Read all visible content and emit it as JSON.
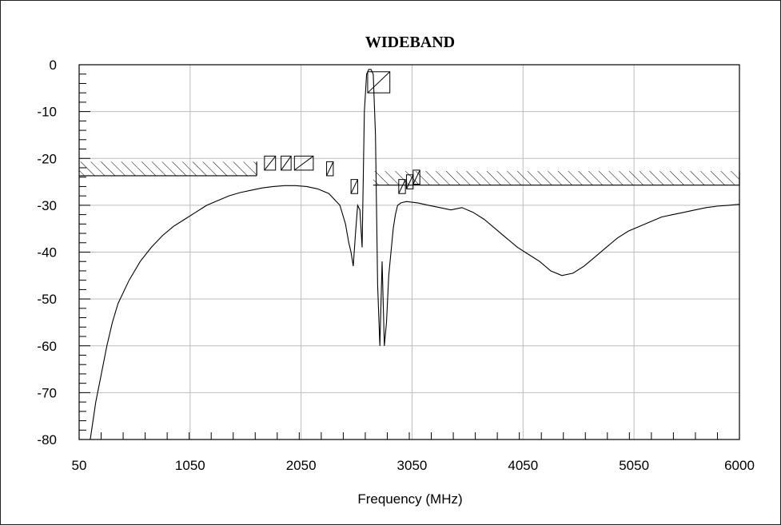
{
  "chart_data": {
    "type": "line",
    "title": "WIDEBAND",
    "xlabel": "Frequency (MHz)",
    "ylabel": "",
    "xlim": [
      50,
      6000
    ],
    "ylim": [
      -80,
      0
    ],
    "x_ticks": [
      50,
      1050,
      2050,
      3050,
      4050,
      5050,
      6000
    ],
    "y_ticks": [
      0,
      -10,
      -20,
      -30,
      -40,
      -50,
      -60,
      -70,
      -80
    ],
    "grid": true,
    "series": [
      {
        "x": [
          150,
          200,
          250,
          300,
          350,
          400,
          500,
          600,
          700,
          800,
          900,
          1000,
          1100,
          1200,
          1300,
          1400,
          1500,
          1600,
          1700,
          1800,
          1900,
          2000,
          2100,
          2200,
          2300,
          2400,
          2450,
          2480,
          2500,
          2520,
          2540,
          2560,
          2580,
          2600,
          2620,
          2640,
          2660,
          2680,
          2700,
          2720,
          2740,
          2760,
          2780,
          2800,
          2820,
          2840,
          2860,
          2880,
          2900,
          2920,
          2950,
          3000,
          3100,
          3200,
          3300,
          3400,
          3500,
          3600,
          3700,
          3800,
          3900,
          4000,
          4100,
          4200,
          4300,
          4400,
          4500,
          4600,
          4700,
          4800,
          4900,
          5000,
          5100,
          5200,
          5300,
          5400,
          5500,
          5600,
          5700,
          5800,
          5900,
          6000
        ],
        "values": [
          -80,
          -72,
          -66,
          -60,
          -55,
          -51,
          -46,
          -42,
          -39,
          -36.5,
          -34.5,
          -33,
          -31.5,
          -30,
          -29,
          -28,
          -27.3,
          -26.8,
          -26.3,
          -26,
          -25.8,
          -25.8,
          -26,
          -26.5,
          -27.5,
          -30,
          -34,
          -38,
          -40,
          -43,
          -36,
          -30,
          -31,
          -39,
          -10,
          -2,
          -1,
          -1,
          -2,
          -15,
          -47,
          -60,
          -42,
          -60,
          -55,
          -45,
          -40,
          -35,
          -32,
          -30,
          -29.5,
          -29.2,
          -29.5,
          -30,
          -30.5,
          -31,
          -30.5,
          -31.5,
          -33,
          -35,
          -37,
          -39,
          -40.5,
          -42,
          -44,
          -45,
          -44.5,
          -43,
          -41,
          -39,
          -37,
          -35.5,
          -34.5,
          -33.5,
          -32.5,
          -32,
          -31.5,
          -31,
          -30.5,
          -30.2,
          -30,
          -29.8
        ]
      }
    ],
    "annotations": {
      "spec_bands": [
        {
          "x": [
            50,
            1650
          ],
          "lower": -23.7,
          "upper": -20.7
        },
        {
          "x": [
            2700,
            6000
          ],
          "lower": -25.7,
          "upper": -22.7
        }
      ],
      "spec_markers": [
        {
          "x": [
            1720,
            1820
          ],
          "lower": -22.5,
          "upper": -19.5
        },
        {
          "x": [
            1870,
            1960
          ],
          "lower": -22.5,
          "upper": -19.5
        },
        {
          "x": [
            1990,
            2160
          ],
          "lower": -22.5,
          "upper": -19.5
        },
        {
          "x": [
            2280,
            2340
          ],
          "lower": -23.7,
          "upper": -20.7
        },
        {
          "x": [
            2500,
            2560
          ],
          "lower": -27.5,
          "upper": -24.5
        },
        {
          "x": [
            2650,
            2850
          ],
          "lower": -6,
          "upper": -1.5
        },
        {
          "x": [
            2930,
            2990
          ],
          "lower": -27.5,
          "upper": -24.5
        },
        {
          "x": [
            3000,
            3060
          ],
          "lower": -26.5,
          "upper": -23.5
        },
        {
          "x": [
            3060,
            3120
          ],
          "lower": -25.5,
          "upper": -22.5
        }
      ]
    }
  }
}
